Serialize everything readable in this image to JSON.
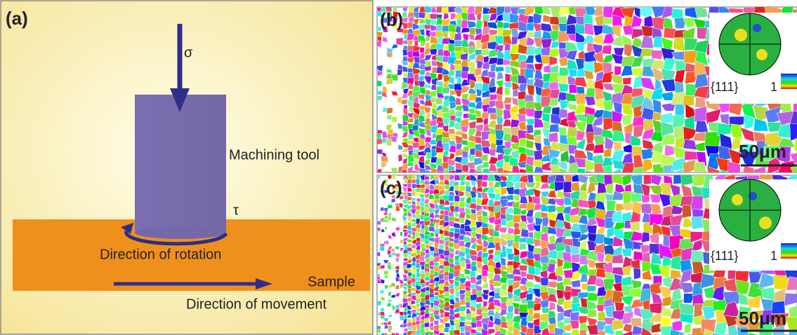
{
  "panel_a": {
    "label": "(a)",
    "stress": "σ",
    "tool": "Machining tool",
    "shear": "τ",
    "rotation": "Direction of rotation",
    "sample": "Sample",
    "movement": "Direction of movement"
  },
  "panel_b": {
    "label": "(b)",
    "pole_figure": "{111}",
    "key_value": "1",
    "scale_bar": "50μm"
  },
  "panel_c": {
    "label": "(c)",
    "pole_figure": "{111}",
    "key_value": "1",
    "scale_bar": "50μm"
  }
}
